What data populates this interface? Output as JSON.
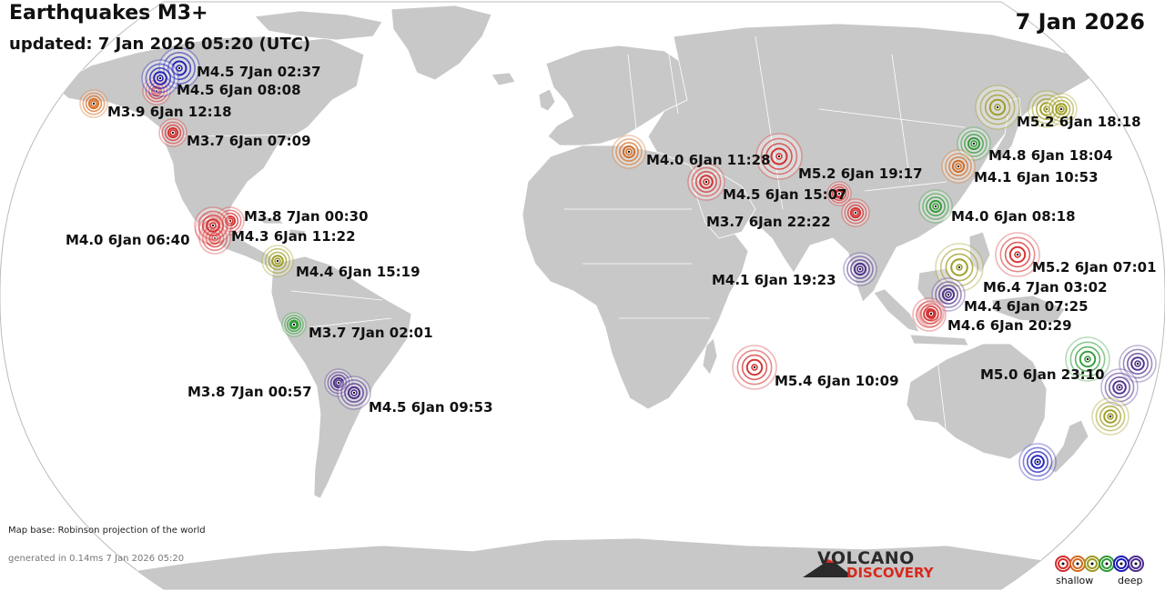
{
  "header": {
    "title": "Earthquakes M3+",
    "updated": "updated:  7 Jan 2026 05:20 (UTC)",
    "date": "7 Jan 2026"
  },
  "footer": {
    "map_base": "Map base: Robinson projection of the world",
    "generated": "generated in 0.14ms  7 Jan 2026 05:20"
  },
  "logo": {
    "line1": "VOLCANO",
    "line2": "DISCOVERY",
    "colors": [
      "#2a2a2a",
      "#d62a1e"
    ]
  },
  "legend": {
    "shallow_label": "shallow",
    "deep_label": "deep",
    "colors": [
      "#d42a2a",
      "#d5691e",
      "#9c9a1e",
      "#2e9a35",
      "#1a1ab5",
      "#4a2a8a"
    ]
  },
  "map": {
    "ocean_color": "#ffffff",
    "land_color": "#c8c8c8",
    "border_color": "#9a9a9a"
  },
  "earthquakes": [
    {
      "label": "M4.5  7Jan 02:37",
      "color": "#1a1ab5"
    },
    {
      "label": "M4.5  6Jan 08:08",
      "color": "#d42a2a"
    },
    {
      "label": "M3.9  6Jan 12:18",
      "color": "#d5691e"
    },
    {
      "label": "M3.7  6Jan 07:09",
      "color": "#d42a2a"
    },
    {
      "label": "M3.8  7Jan 00:30",
      "color": "#d42a2a"
    },
    {
      "label": "M4.0  6Jan 06:40",
      "color": "#d42a2a"
    },
    {
      "label": "M4.3  6Jan 11:22",
      "color": "#d42a2a"
    },
    {
      "label": "M4.4  6Jan 15:19",
      "color": "#9c9a1e"
    },
    {
      "label": "M3.7  7Jan 02:01",
      "color": "#2e9a35"
    },
    {
      "label": "M3.8  7Jan 00:57",
      "color": "#4a2a8a"
    },
    {
      "label": "M4.5  6Jan 09:53",
      "color": "#4a2a8a"
    },
    {
      "label": "M4.0  6Jan 11:28",
      "color": "#d5691e"
    },
    {
      "label": "M5.2  6Jan 19:17",
      "color": "#d42a2a"
    },
    {
      "label": "M4.5  6Jan 15:07",
      "color": "#d42a2a"
    },
    {
      "label": "M3.7  6Jan 22:22",
      "color": "#d42a2a"
    },
    {
      "label": "M4.1  6Jan 19:23",
      "color": "#4a2a8a"
    },
    {
      "label": "M5.4  6Jan 10:09",
      "color": "#d42a2a"
    },
    {
      "label": "M5.2  6Jan 18:18",
      "color": "#9c9a1e"
    },
    {
      "label": "M4.8  6Jan 18:04",
      "color": "#2e9a35"
    },
    {
      "label": "M4.1  6Jan 10:53",
      "color": "#d5691e"
    },
    {
      "label": "M4.0  6Jan 08:18",
      "color": "#2e9a35"
    },
    {
      "label": "M5.2  6Jan 07:01",
      "color": "#d42a2a"
    },
    {
      "label": "M6.4  7Jan 03:02",
      "color": "#9c9a1e"
    },
    {
      "label": "M4.4  6Jan 07:25",
      "color": "#4a2a8a"
    },
    {
      "label": "M4.6  6Jan 20:29",
      "color": "#d42a2a"
    },
    {
      "label": "M5.0  6Jan 23:10",
      "color": "#2e9a35"
    },
    {
      "label": "",
      "color": "#4a2a8a"
    },
    {
      "label": "",
      "color": "#4a2a8a"
    },
    {
      "label": "",
      "color": "#9c9a1e"
    },
    {
      "label": "",
      "color": "#1a1ab5"
    },
    {
      "label": "",
      "color": "#1a1ab5"
    },
    {
      "label": "",
      "color": "#9c9a1e"
    },
    {
      "label": "",
      "color": "#9c9a1e"
    },
    {
      "label": "",
      "color": "#d42a2a"
    },
    {
      "label": "",
      "color": "#d42a2a"
    },
    {
      "label": "",
      "color": "#d42a2a"
    }
  ]
}
